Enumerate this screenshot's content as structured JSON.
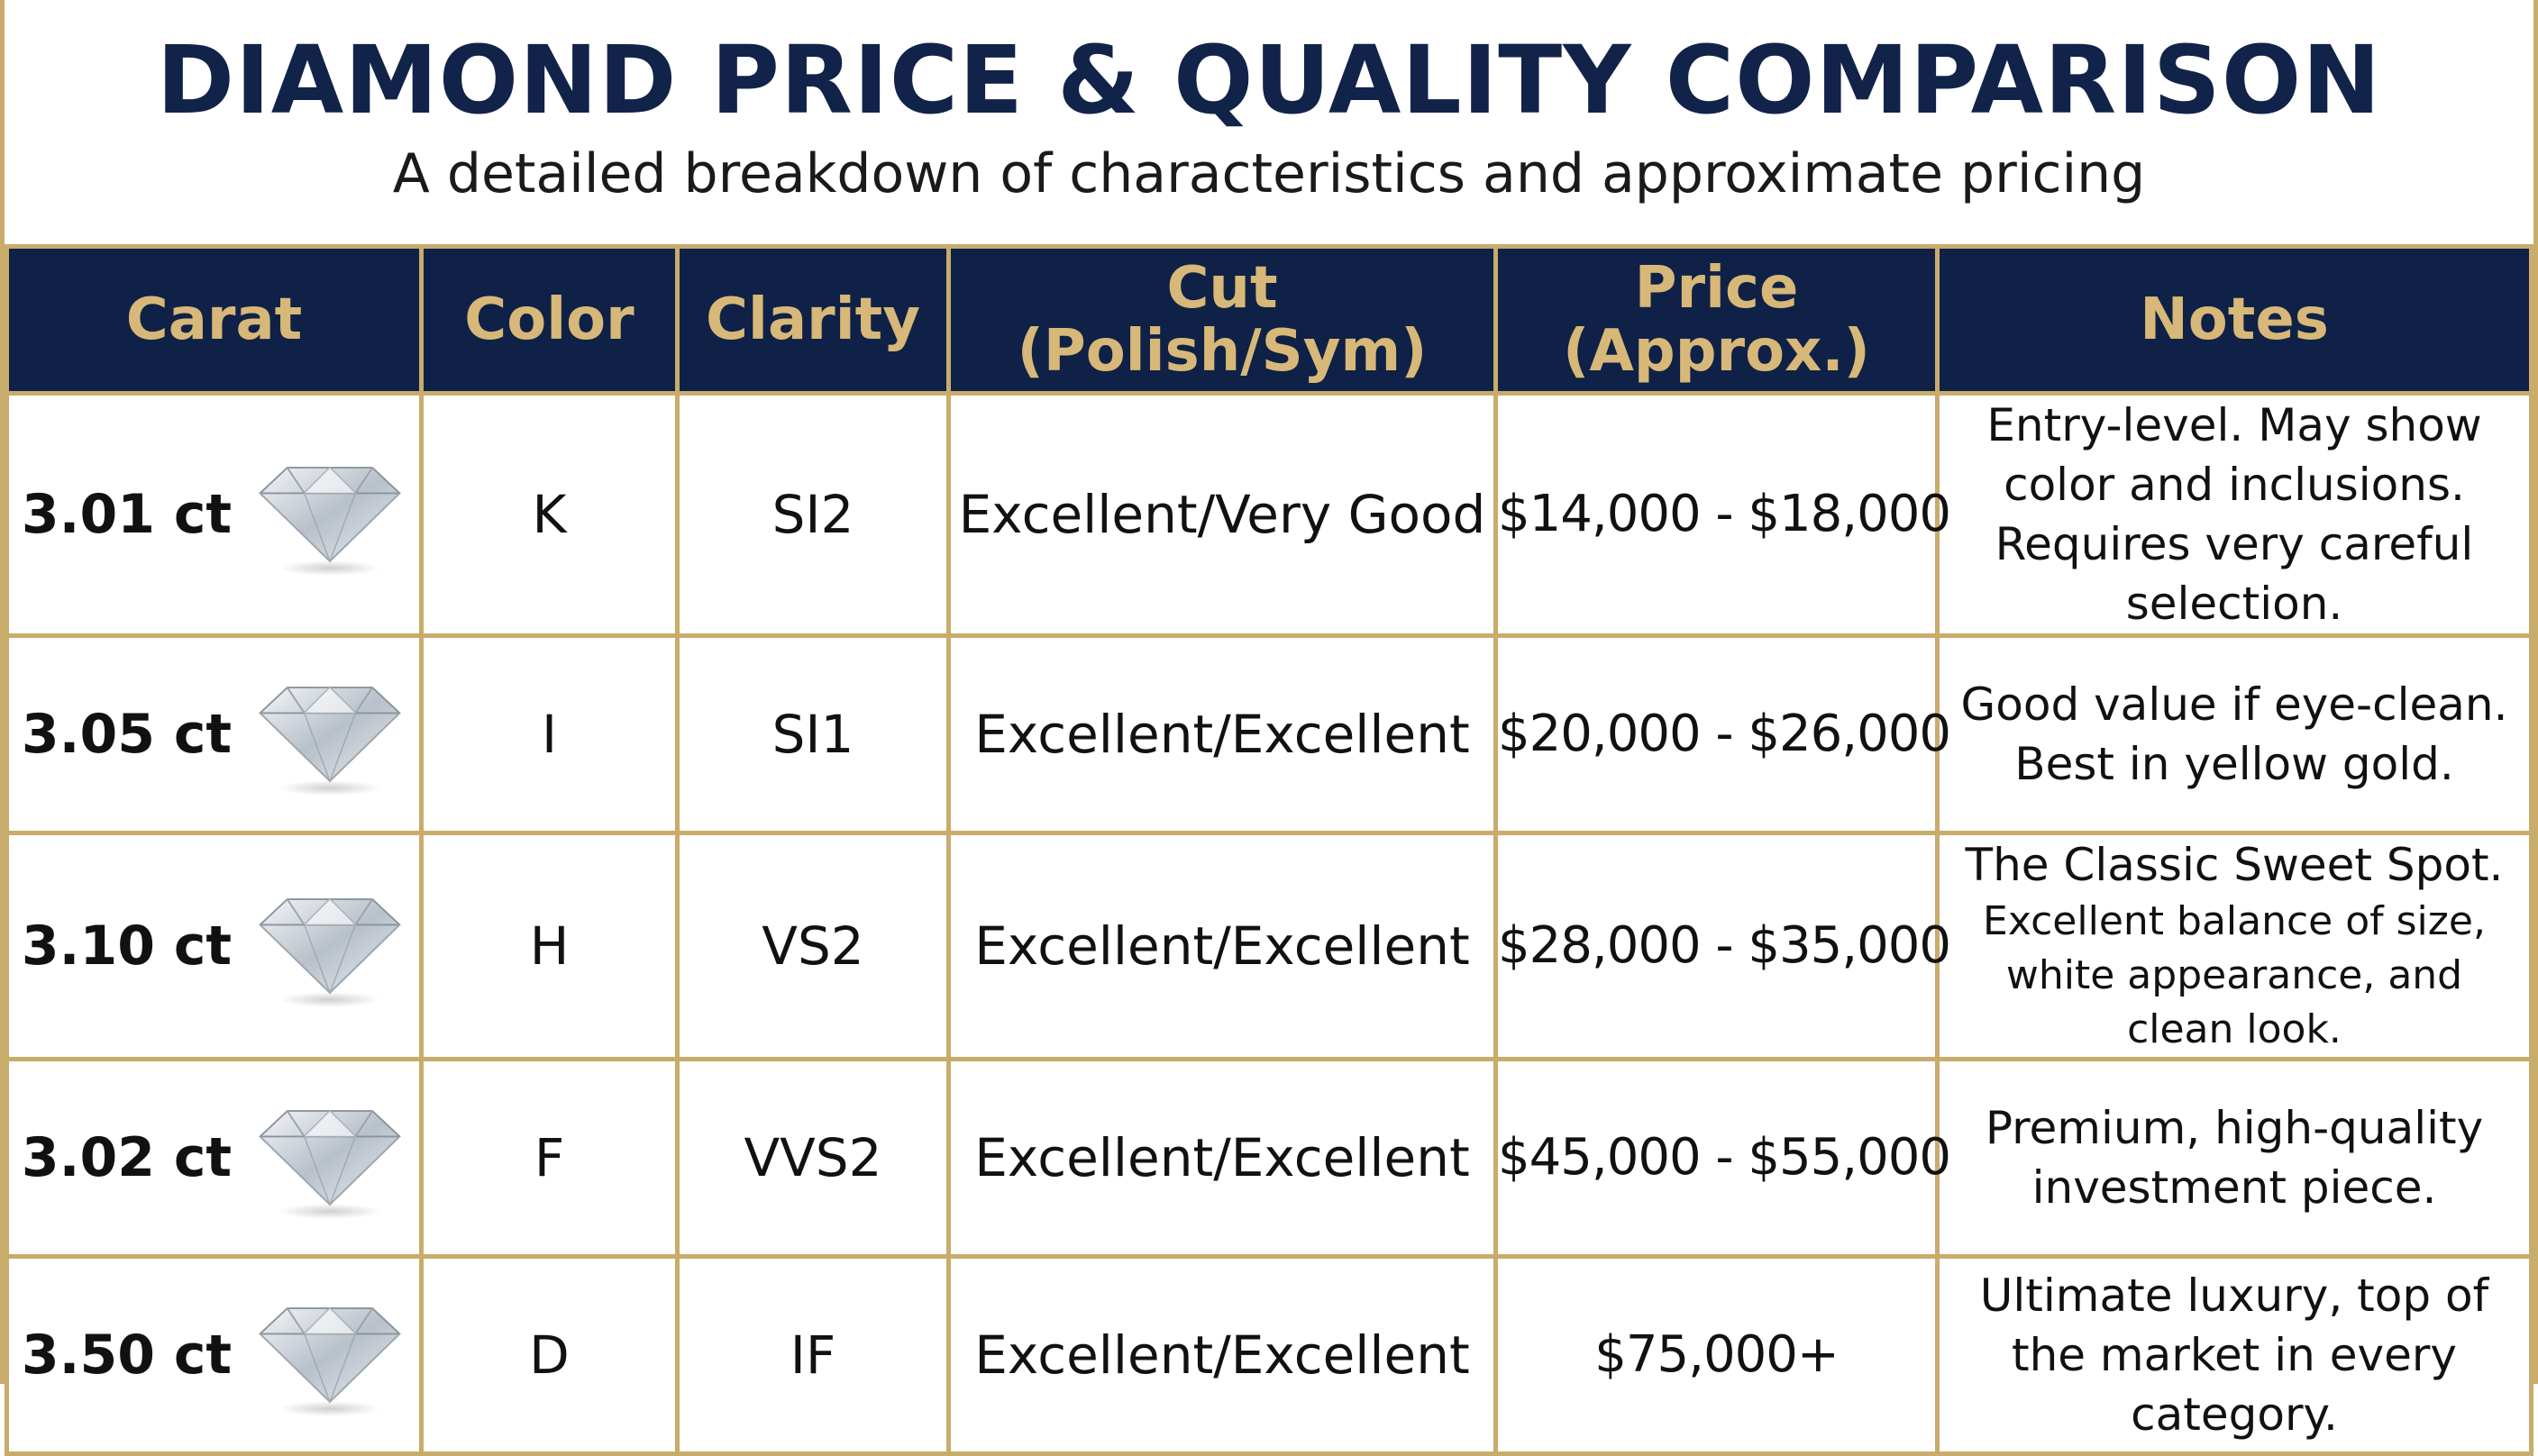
{
  "header": {
    "title": "DIAMOND PRICE & QUALITY COMPARISON",
    "subtitle": "A detailed breakdown of characteristics and approximate pricing"
  },
  "table": {
    "columns": [
      [
        "Carat"
      ],
      [
        "Color"
      ],
      [
        "Clarity"
      ],
      [
        "Cut",
        "(Polish/Sym)"
      ],
      [
        "Price",
        "(Approx.)"
      ],
      [
        "Notes"
      ]
    ],
    "rows": [
      [
        "3.01 ct",
        "K",
        "SI2",
        "Excellent/Very Good",
        "$14,000 - $18,000",
        [
          "Entry-level. May show color and inclusions. Requires very careful selection."
        ]
      ],
      [
        "3.05 ct",
        "I",
        "SI1",
        "Excellent/Excellent",
        "$20,000 - $26,000",
        [
          "Good value if eye-clean. Best in yellow gold."
        ]
      ],
      [
        "3.10 ct",
        "H",
        "VS2",
        "Excellent/Excellent",
        "$28,000 - $35,000",
        [
          "The Classic Sweet Spot.",
          "Excellent balance of size, white appearance, and clean look."
        ]
      ],
      [
        "3.02 ct",
        "F",
        "VVS2",
        "Excellent/Excellent",
        "$45,000 - $55,000",
        [
          "Premium, high-quality investment piece."
        ]
      ],
      [
        "3.50 ct",
        "D",
        "IF",
        "Excellent/Excellent",
        "$75,000+",
        [
          "Ultimate luxury, top of the market in every category."
        ]
      ]
    ]
  }
}
